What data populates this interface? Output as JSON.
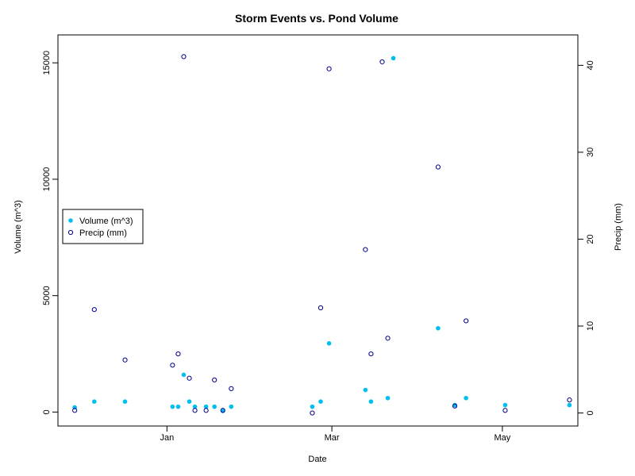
{
  "chart_data": {
    "type": "scatter",
    "title": "Storm Events vs. Pond Volume",
    "xlabel": "Date",
    "ylabel_left": "Volume (m^3)",
    "ylabel_right": "Precip (mm)",
    "x_axis": {
      "type": "date",
      "range": [
        "2014-11-23",
        "2015-05-28"
      ],
      "ticks": [
        {
          "value": "2015-01-01",
          "label": "Jan"
        },
        {
          "value": "2015-03-01",
          "label": "Mar"
        },
        {
          "value": "2015-05-01",
          "label": "May"
        }
      ]
    },
    "y_left": {
      "range": [
        -600,
        16200
      ],
      "ticks": [
        0,
        5000,
        10000,
        15000
      ]
    },
    "y_right": {
      "range": [
        -1.5,
        43.5
      ],
      "ticks": [
        0,
        10,
        20,
        30,
        40
      ]
    },
    "legend": {
      "placement": "left",
      "entries": [
        "Volume (m^3)",
        "Precip (mm)"
      ]
    },
    "series": [
      {
        "name": "Volume (m^3)",
        "axis": "left",
        "marker": "filled-circle",
        "color": "#00bfef",
        "points": [
          {
            "x": "2014-11-29",
            "y": 200
          },
          {
            "x": "2014-12-06",
            "y": 450
          },
          {
            "x": "2014-12-17",
            "y": 450
          },
          {
            "x": "2015-01-09",
            "y": 450
          },
          {
            "x": "2015-01-03",
            "y": 230
          },
          {
            "x": "2015-01-05",
            "y": 230
          },
          {
            "x": "2015-01-07",
            "y": 1600
          },
          {
            "x": "2015-01-11",
            "y": 230
          },
          {
            "x": "2015-01-15",
            "y": 230
          },
          {
            "x": "2015-01-18",
            "y": 230
          },
          {
            "x": "2015-01-21",
            "y": 50
          },
          {
            "x": "2015-01-24",
            "y": 230
          },
          {
            "x": "2015-02-22",
            "y": 230
          },
          {
            "x": "2015-02-25",
            "y": 450
          },
          {
            "x": "2015-02-28",
            "y": 2950
          },
          {
            "x": "2015-03-13",
            "y": 950
          },
          {
            "x": "2015-03-15",
            "y": 450
          },
          {
            "x": "2015-03-21",
            "y": 600
          },
          {
            "x": "2015-03-23",
            "y": 15200
          },
          {
            "x": "2015-04-08",
            "y": 3600
          },
          {
            "x": "2015-04-14",
            "y": 300
          },
          {
            "x": "2015-04-18",
            "y": 600
          },
          {
            "x": "2015-05-02",
            "y": 300
          },
          {
            "x": "2015-05-25",
            "y": 300
          }
        ]
      },
      {
        "name": "Precip (mm)",
        "axis": "right",
        "marker": "open-circle",
        "color": "#00008b",
        "points": [
          {
            "x": "2014-11-29",
            "y": 0.3
          },
          {
            "x": "2014-12-06",
            "y": 11.9
          },
          {
            "x": "2014-12-17",
            "y": 6.1
          },
          {
            "x": "2015-01-09",
            "y": 4.0
          },
          {
            "x": "2015-01-03",
            "y": 5.5
          },
          {
            "x": "2015-01-05",
            "y": 6.8
          },
          {
            "x": "2015-01-07",
            "y": 41.0
          },
          {
            "x": "2015-01-11",
            "y": 0.3
          },
          {
            "x": "2015-01-15",
            "y": 0.3
          },
          {
            "x": "2015-01-18",
            "y": 3.8
          },
          {
            "x": "2015-01-21",
            "y": 0.3
          },
          {
            "x": "2015-01-24",
            "y": 2.8
          },
          {
            "x": "2015-02-22",
            "y": 0.0
          },
          {
            "x": "2015-02-25",
            "y": 12.1
          },
          {
            "x": "2015-02-28",
            "y": 39.6
          },
          {
            "x": "2015-03-13",
            "y": 18.8
          },
          {
            "x": "2015-03-15",
            "y": 6.8
          },
          {
            "x": "2015-03-19",
            "y": 40.4
          },
          {
            "x": "2015-03-21",
            "y": 8.6
          },
          {
            "x": "2015-04-08",
            "y": 28.3
          },
          {
            "x": "2015-04-14",
            "y": 0.8
          },
          {
            "x": "2015-04-18",
            "y": 10.6
          },
          {
            "x": "2015-05-02",
            "y": 0.3
          },
          {
            "x": "2015-05-25",
            "y": 1.5
          }
        ]
      }
    ]
  }
}
